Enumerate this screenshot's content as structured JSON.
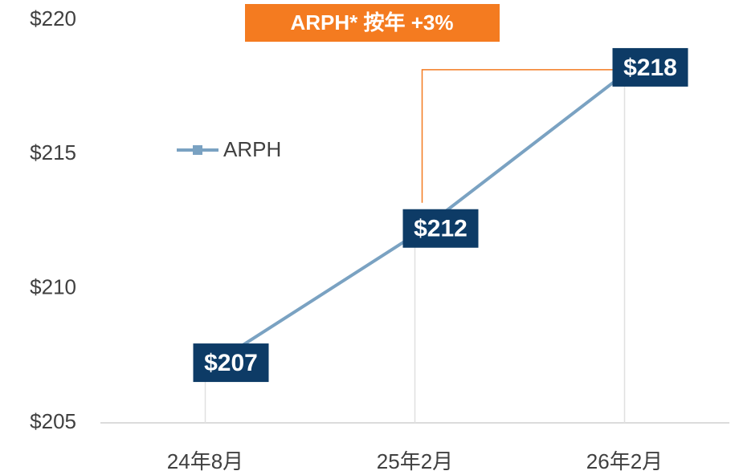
{
  "chart_data": {
    "type": "line",
    "annotation": "ARPH* 按年 +3%",
    "categories": [
      "24年8月",
      "25年2月",
      "26年2月"
    ],
    "series": [
      {
        "name": "ARPH",
        "color": "#7aa2c2",
        "values": [
          207,
          212,
          218
        ],
        "value_labels": [
          "$207",
          "$212",
          "$218"
        ]
      }
    ],
    "ylim": [
      205,
      220
    ],
    "yticks": [
      {
        "value": 205,
        "label": "$205"
      },
      {
        "value": 210,
        "label": "$210"
      },
      {
        "value": 215,
        "label": "$215"
      },
      {
        "value": 220,
        "label": "$220"
      }
    ],
    "legend": "upper left",
    "annotation_color": "#f47b20",
    "label_color": "#0d3b66"
  }
}
